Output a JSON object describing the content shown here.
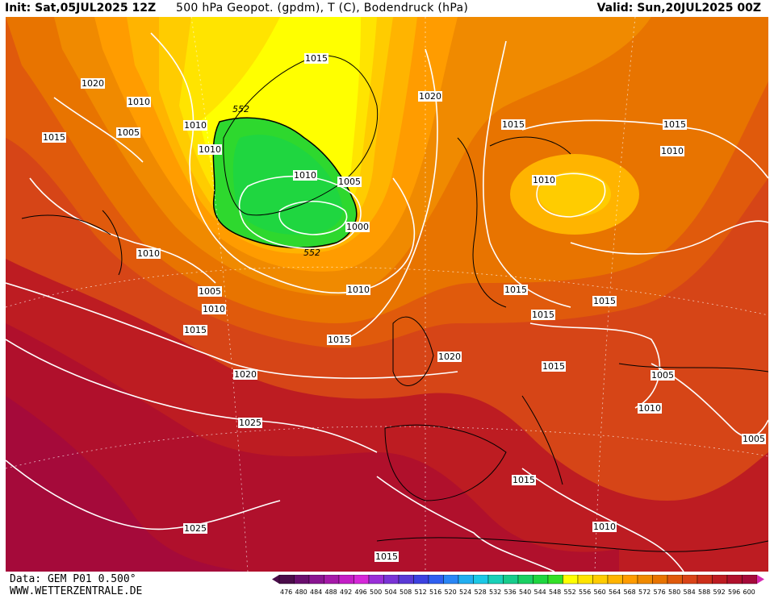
{
  "header": {
    "init": "Init: Sat,05JUL2025 12Z",
    "title": "500 hPa Geopot. (gpdm), T (C), Bodendruck (hPa)",
    "valid": "Valid: Sun,20JUL2025 00Z"
  },
  "footer": {
    "data": "Data: GEM P01 0.500°",
    "site": "WWW.WETTERZENTRALE.DE"
  },
  "legend": {
    "labels": [
      "476",
      "480",
      "484",
      "488",
      "492",
      "496",
      "500",
      "504",
      "508",
      "512",
      "516",
      "520",
      "524",
      "528",
      "532",
      "536",
      "540",
      "544",
      "548",
      "552",
      "556",
      "560",
      "564",
      "568",
      "572",
      "576",
      "580",
      "584",
      "588",
      "592",
      "596",
      "600"
    ],
    "colors": [
      "#4b0d4a",
      "#6a0f6e",
      "#8a1591",
      "#a51aa8",
      "#c41ec6",
      "#d628d9",
      "#9a2fd8",
      "#7a34d6",
      "#5a3ad6",
      "#3d42e0",
      "#2f5ff0",
      "#2a86f5",
      "#22aef0",
      "#1cc8e6",
      "#1ad0b8",
      "#18cc8c",
      "#1ad063",
      "#1fd640",
      "#34e028",
      "#ffff00",
      "#ffe400",
      "#ffcc00",
      "#ffb400",
      "#ff9c00",
      "#f08a00",
      "#e87400",
      "#e05a0c",
      "#d94418",
      "#cc2f1a",
      "#bd1c22",
      "#b0102c",
      "#a50a3a"
    ]
  },
  "map": {
    "isobar_labels": [
      "1020",
      "1010",
      "1015",
      "1005",
      "1010",
      "1015",
      "1010",
      "1000",
      "1005",
      "1010",
      "1010",
      "1005",
      "1010",
      "1015",
      "1015",
      "1020",
      "1025",
      "1025",
      "1020",
      "1020",
      "1015",
      "1010",
      "1015",
      "1010",
      "1010",
      "1015",
      "1015",
      "1015",
      "1015",
      "1005",
      "1010",
      "1005",
      "1015",
      "1010",
      "1015"
    ],
    "geopot_labels": [
      "552",
      "552"
    ]
  }
}
